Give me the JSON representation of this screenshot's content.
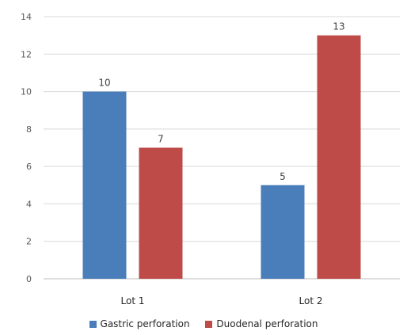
{
  "chart_data": {
    "type": "bar",
    "categories": [
      "Lot 1",
      "Lot 2"
    ],
    "series": [
      {
        "name": "Gastric perforation",
        "values": [
          10,
          5
        ],
        "color": "#4a7ebb"
      },
      {
        "name": "Duodenal perforation",
        "values": [
          7,
          13
        ],
        "color": "#be4b48"
      }
    ],
    "ylim": [
      0,
      14
    ],
    "yticks": [
      0,
      2,
      4,
      6,
      8,
      10,
      12,
      14
    ],
    "grid": true,
    "legend_position": "bottom",
    "title": "",
    "xlabel": "",
    "ylabel": ""
  }
}
